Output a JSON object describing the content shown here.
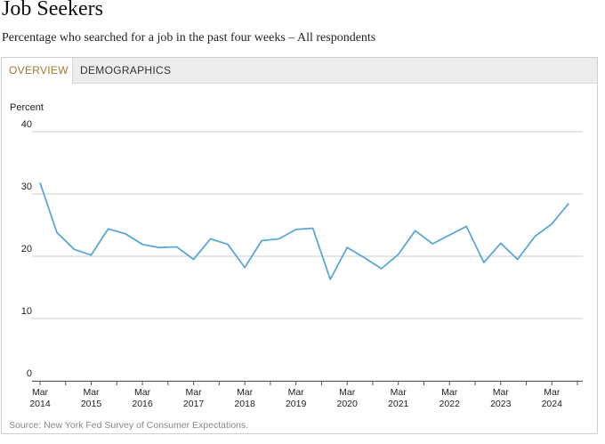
{
  "header": {
    "title": "Job Seekers",
    "subtitle": "Percentage who searched for a job in the past four weeks – All respondents"
  },
  "tabs": [
    {
      "label": "OVERVIEW",
      "active": true
    },
    {
      "label": "DEMOGRAPHICS",
      "active": false
    }
  ],
  "source": "Source: New York Fed Survey of Consumer Expectations.",
  "colors": {
    "line": "#5aa7d8",
    "active_tab": "#9a7a2e",
    "grid": "#cccccc"
  },
  "chart_data": {
    "type": "line",
    "ylabel": "Percent",
    "ylim": [
      0,
      40
    ],
    "yticks": [
      0,
      10,
      20,
      30,
      40
    ],
    "xlim": [
      2014.2,
      2024.6
    ],
    "xticks": [
      {
        "value": 2014.2,
        "line1": "Mar",
        "line2": "2014"
      },
      {
        "value": 2015.2,
        "line1": "Mar",
        "line2": "2015"
      },
      {
        "value": 2016.2,
        "line1": "Mar",
        "line2": "2016"
      },
      {
        "value": 2017.2,
        "line1": "Mar",
        "line2": "2017"
      },
      {
        "value": 2018.2,
        "line1": "Mar",
        "line2": "2018"
      },
      {
        "value": 2019.2,
        "line1": "Mar",
        "line2": "2019"
      },
      {
        "value": 2020.2,
        "line1": "Mar",
        "line2": "2020"
      },
      {
        "value": 2021.2,
        "line1": "Mar",
        "line2": "2021"
      },
      {
        "value": 2022.2,
        "line1": "Mar",
        "line2": "2022"
      },
      {
        "value": 2023.2,
        "line1": "Mar",
        "line2": "2023"
      },
      {
        "value": 2024.2,
        "line1": "Mar",
        "line2": "2024"
      }
    ],
    "grid": true,
    "series": [
      {
        "x": [
          2014.2,
          2014.53,
          2014.87,
          2015.2,
          2015.53,
          2015.87,
          2016.2,
          2016.53,
          2016.87,
          2017.2,
          2017.53,
          2017.87,
          2018.2,
          2018.53,
          2018.87,
          2019.2,
          2019.53,
          2019.87,
          2020.2,
          2020.53,
          2020.87,
          2021.2,
          2021.53,
          2021.87,
          2022.2,
          2022.53,
          2022.87,
          2023.2,
          2023.53,
          2023.87,
          2024.2,
          2024.53
        ],
        "y": [
          31.8,
          23.8,
          21.1,
          20.2,
          24.4,
          23.6,
          21.9,
          21.4,
          21.5,
          19.5,
          22.8,
          21.9,
          18.2,
          22.5,
          22.8,
          24.3,
          24.5,
          16.3,
          21.4,
          19.8,
          18.0,
          20.3,
          24.1,
          22.0,
          23.4,
          24.8,
          19.0,
          22.1,
          19.5,
          23.2,
          25.2,
          28.5
        ]
      }
    ]
  }
}
